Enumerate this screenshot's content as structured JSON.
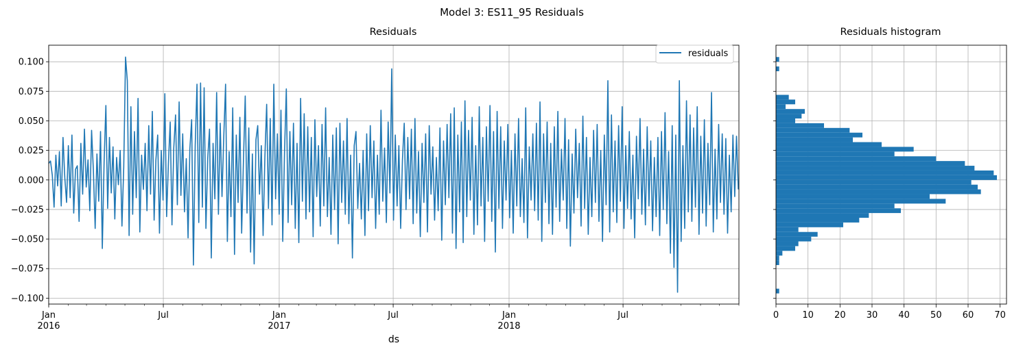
{
  "figure": {
    "title": "Model 3: ES11_95 Residuals"
  },
  "colors": {
    "series": "#1f77b4",
    "grid": "#b0b0b0",
    "axis": "#000000"
  },
  "chart_data": [
    {
      "type": "line",
      "title": "Residuals",
      "xlabel": "ds",
      "ylabel": "",
      "x_range": [
        "2016-01-01",
        "2018-12-31"
      ],
      "ylim": [
        -0.105,
        0.114
      ],
      "grid": true,
      "legend": {
        "placement": "top-right",
        "entries": [
          "residuals"
        ]
      },
      "x_ticks": [
        {
          "date": "2016-01-01",
          "label": "Jan",
          "sublabel": "2016"
        },
        {
          "date": "2016-07-01",
          "label": "Jul",
          "sublabel": ""
        },
        {
          "date": "2017-01-01",
          "label": "Jan",
          "sublabel": "2017"
        },
        {
          "date": "2017-07-01",
          "label": "Jul",
          "sublabel": ""
        },
        {
          "date": "2018-01-01",
          "label": "Jan",
          "sublabel": "2018"
        },
        {
          "date": "2018-07-01",
          "label": "Jul",
          "sublabel": ""
        }
      ],
      "y_ticks": [
        0.1,
        0.075,
        0.05,
        0.025,
        0.0,
        -0.025,
        -0.05,
        -0.075,
        -0.1
      ],
      "y_tick_labels": [
        "0.100",
        "0.075",
        "0.050",
        "0.025",
        "0.000",
        "−0.025",
        "−0.050",
        "−0.075",
        "−0.100"
      ],
      "series": [
        {
          "name": "residuals",
          "x_start": "2016-01-01",
          "x_end": "2018-12-31",
          "frequency": "daily",
          "values": [
            0.014,
            0.016,
            0.004,
            -0.023,
            0.021,
            -0.005,
            0.024,
            -0.022,
            0.036,
            0.002,
            -0.019,
            0.029,
            -0.015,
            0.038,
            -0.028,
            0.009,
            0.012,
            -0.035,
            0.031,
            -0.012,
            0.043,
            -0.006,
            0.017,
            -0.026,
            0.042,
            0.008,
            -0.041,
            0.022,
            -0.018,
            0.041,
            -0.058,
            0.015,
            0.063,
            -0.024,
            0.036,
            -0.011,
            0.028,
            -0.033,
            0.019,
            -0.004,
            0.025,
            -0.039,
            0.011,
            0.104,
            0.084,
            -0.047,
            0.062,
            -0.029,
            0.041,
            -0.015,
            0.069,
            -0.044,
            0.021,
            -0.008,
            0.031,
            -0.026,
            0.046,
            -0.012,
            0.058,
            -0.034,
            0.017,
            0.038,
            -0.045,
            0.025,
            -0.017,
            0.073,
            -0.031,
            0.014,
            0.049,
            -0.038,
            0.027,
            0.055,
            -0.021,
            0.066,
            -0.013,
            0.039,
            -0.027,
            0.018,
            -0.049,
            0.026,
            0.051,
            -0.072,
            0.029,
            0.081,
            -0.036,
            0.082,
            -0.023,
            0.078,
            -0.041,
            0.018,
            0.043,
            -0.066,
            0.031,
            -0.016,
            0.074,
            -0.029,
            0.048,
            -0.014,
            0.037,
            0.081,
            -0.052,
            0.024,
            -0.031,
            0.061,
            -0.063,
            0.038,
            -0.019,
            0.053,
            -0.045,
            0.016,
            0.071,
            -0.028,
            0.044,
            -0.061,
            0.022,
            -0.071,
            0.034,
            0.046,
            -0.012,
            0.029,
            -0.047,
            0.019,
            0.064,
            -0.024,
            0.052,
            -0.038,
            0.081,
            -0.016,
            0.039,
            -0.029,
            0.059,
            -0.052,
            0.024,
            0.077,
            -0.036,
            0.041,
            -0.021,
            0.048,
            -0.041,
            0.031,
            -0.053,
            0.069,
            -0.018,
            0.056,
            -0.033,
            0.045,
            -0.027,
            0.036,
            -0.048,
            0.051,
            -0.014,
            0.029,
            -0.039,
            0.047,
            -0.022,
            0.061,
            -0.031,
            0.019,
            -0.046,
            0.038,
            -0.025,
            0.044,
            -0.054,
            0.048,
            -0.019,
            0.033,
            -0.029,
            0.052,
            -0.037,
            0.021,
            -0.066,
            0.029,
            0.041,
            -0.024,
            0.014,
            -0.033,
            0.025,
            -0.047,
            0.039,
            -0.026,
            0.046,
            -0.015,
            0.033,
            -0.041,
            0.021,
            -0.029,
            0.059,
            -0.018,
            0.027,
            -0.036,
            0.049,
            -0.011,
            0.094,
            -0.034,
            0.038,
            -0.022,
            0.029,
            -0.041,
            0.017,
            0.048,
            -0.025,
            0.036,
            -0.016,
            0.043,
            -0.037,
            0.052,
            -0.028,
            0.024,
            -0.048,
            0.031,
            -0.019,
            0.039,
            -0.044,
            0.046,
            -0.012,
            0.028,
            -0.034,
            0.019,
            -0.026,
            0.044,
            -0.051,
            0.033,
            -0.021,
            0.047,
            -0.015,
            0.056,
            -0.045,
            0.061,
            -0.058,
            0.038,
            -0.027,
            0.049,
            -0.053,
            0.067,
            -0.031,
            0.042,
            -0.017,
            0.053,
            -0.046,
            0.029,
            -0.038,
            0.062,
            -0.022,
            0.036,
            -0.052,
            0.045,
            -0.018,
            0.063,
            -0.035,
            0.041,
            -0.061,
            0.058,
            -0.024,
            0.045,
            -0.041,
            0.033,
            -0.017,
            0.047,
            -0.032,
            0.025,
            -0.045,
            0.039,
            -0.022,
            0.052,
            -0.031,
            0.018,
            -0.036,
            0.061,
            -0.049,
            0.028,
            -0.017,
            0.039,
            -0.026,
            0.048,
            -0.034,
            0.066,
            -0.052,
            0.039,
            -0.019,
            0.049,
            -0.037,
            0.031,
            -0.046,
            0.045,
            -0.023,
            0.058,
            -0.035,
            0.026,
            -0.017,
            0.052,
            -0.041,
            0.034,
            -0.056,
            0.022,
            -0.028,
            0.043,
            -0.015,
            0.031,
            -0.039,
            0.054,
            -0.024,
            0.036,
            -0.046,
            0.019,
            -0.031,
            0.042,
            -0.019,
            0.047,
            -0.035,
            0.025,
            -0.052,
            0.038,
            -0.021,
            0.084,
            -0.044,
            0.055,
            -0.027,
            0.033,
            -0.036,
            0.046,
            -0.018,
            0.062,
            -0.041,
            0.029,
            -0.024,
            0.041,
            -0.033,
            0.021,
            -0.049,
            0.037,
            -0.016,
            0.052,
            -0.029,
            0.026,
            -0.038,
            0.045,
            -0.022,
            0.033,
            -0.043,
            0.019,
            -0.031,
            0.036,
            -0.047,
            0.041,
            -0.025,
            0.057,
            -0.037,
            0.024,
            -0.062,
            0.046,
            -0.074,
            0.038,
            -0.095,
            0.084,
            -0.052,
            0.029,
            -0.041,
            0.067,
            -0.027,
            0.055,
            -0.035,
            0.044,
            -0.023,
            0.062,
            -0.046,
            0.037,
            -0.028,
            0.051,
            -0.039,
            0.031,
            -0.021,
            0.074,
            -0.044,
            0.026,
            -0.033,
            0.047,
            -0.019,
            0.039,
            -0.029,
            0.035,
            -0.045,
            0.021,
            -0.027,
            0.038,
            -0.014,
            0.037,
            -0.008
          ]
        }
      ]
    },
    {
      "type": "histogram",
      "title": "Residuals histogram",
      "orientation": "horizontal",
      "xlabel": "",
      "ylabel": "",
      "xlim": [
        0,
        72
      ],
      "grid": true,
      "x_ticks": [
        0,
        10,
        20,
        30,
        40,
        50,
        60,
        70
      ],
      "bin_edges": [
        -0.1,
        -0.096,
        -0.092,
        -0.088,
        -0.084,
        -0.08,
        -0.076,
        -0.072,
        -0.068,
        -0.064,
        -0.06,
        -0.056,
        -0.052,
        -0.048,
        -0.044,
        -0.04,
        -0.036,
        -0.032,
        -0.028,
        -0.024,
        -0.02,
        -0.016,
        -0.012,
        -0.008,
        -0.004,
        0.0,
        0.004,
        0.008,
        0.012,
        0.016,
        0.02,
        0.024,
        0.028,
        0.032,
        0.036,
        0.04,
        0.044,
        0.048,
        0.052,
        0.056,
        0.06,
        0.064,
        0.068,
        0.072,
        0.076,
        0.08,
        0.084,
        0.088,
        0.092,
        0.096,
        0.1,
        0.104
      ],
      "counts": [
        0,
        1,
        0,
        0,
        0,
        0,
        0,
        1,
        1,
        2,
        6,
        7,
        11,
        13,
        7,
        21,
        26,
        29,
        39,
        37,
        53,
        48,
        64,
        63,
        61,
        69,
        68,
        62,
        59,
        50,
        37,
        43,
        33,
        24,
        27,
        23,
        15,
        6,
        8,
        9,
        3,
        6,
        4,
        0,
        0,
        0,
        0,
        0,
        1,
        0,
        1
      ]
    }
  ]
}
